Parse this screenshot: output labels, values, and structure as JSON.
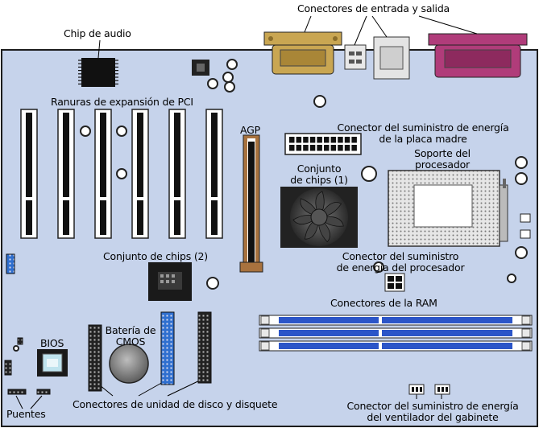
{
  "labels": {
    "io_connectors": "Conectores de entrada y salida",
    "audio_chip": "Chip de audio",
    "pci_slots": "Ranuras de expansión de PCI",
    "agp": "AGP",
    "mb_power_line1": "Conector del suministro de energía",
    "mb_power_line2": "de la placa madre",
    "cpu_socket_line1": "Soporte del",
    "cpu_socket_line2": "procesador",
    "chipset1_line1": "Conjunto",
    "chipset1_line2": "de chips (1)",
    "chipset2": "Conjunto de chips (2)",
    "cpu_power_line1": "Conector del suministro",
    "cpu_power_line2": "de energía del procesador",
    "ram": "Conectores de la RAM",
    "bios": "BIOS",
    "cmos_line1": "Batería de",
    "cmos_line2": "CMOS",
    "jumpers": "Puentes",
    "drive_connectors": "Conectores de unidad de disco y disquete",
    "fan_power_line1": "Conector del suministro de energía",
    "fan_power_line2": "del ventilador del gabinete"
  },
  "colors": {
    "board": "#c6d3eb",
    "board_border": "#1c1c1c",
    "parallel_port": "#c9a652",
    "serial_port": "#b03c7a",
    "ram_slot": "#2b55c8",
    "agp_slot": "#a8723e",
    "floppy_connector": "#2f6fcf"
  }
}
